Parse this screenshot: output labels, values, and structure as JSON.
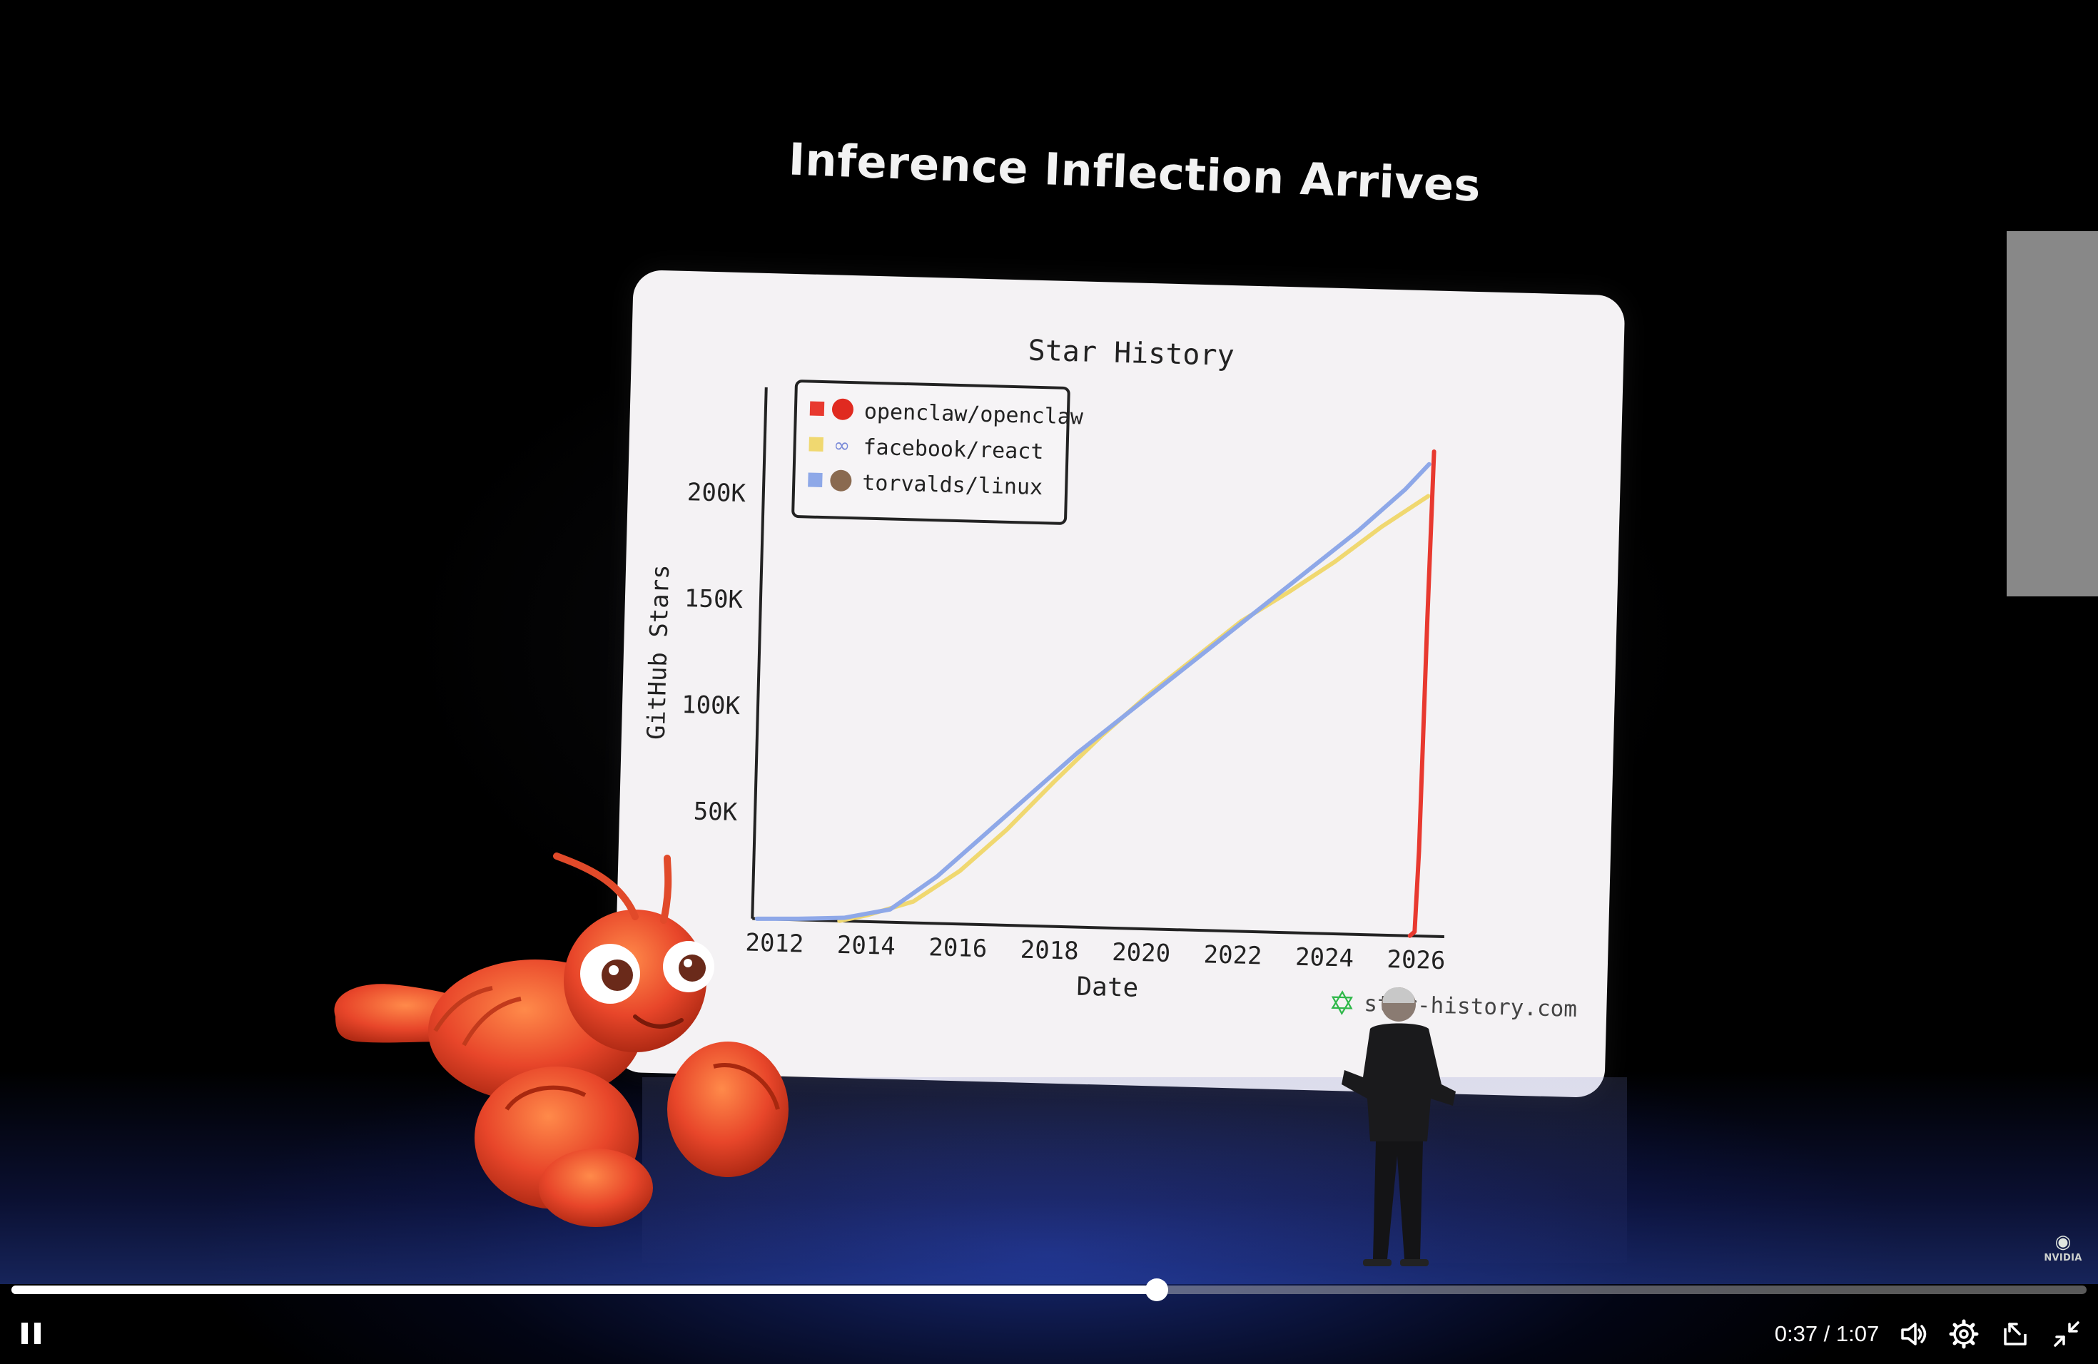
{
  "slide": {
    "title": "Inference Inflection Arrives"
  },
  "chart_data": {
    "type": "line",
    "title": "Star History",
    "xlabel": "Date",
    "ylabel": "GitHub Stars",
    "x_ticks": [
      "2012",
      "2014",
      "2016",
      "2018",
      "2020",
      "2022",
      "2024",
      "2026"
    ],
    "y_ticks": [
      "50K",
      "100K",
      "150K",
      "200K"
    ],
    "xlim": [
      2011.5,
      2026.6
    ],
    "ylim": [
      0,
      250000
    ],
    "legend_position": "top-left",
    "watermark": "star-history.com",
    "series": [
      {
        "name": "openclaw/openclaw",
        "color": "#e8392f",
        "x": [
          2025.85,
          2025.95,
          2026.0,
          2026.05,
          2026.1
        ],
        "y": [
          0,
          2000,
          40000,
          150000,
          228000
        ]
      },
      {
        "name": "facebook/react",
        "color": "#f0d870",
        "x": [
          2013.4,
          2014.0,
          2015.0,
          2016.0,
          2017.0,
          2018.0,
          2019.0,
          2020.0,
          2021.0,
          2022.0,
          2023.0,
          2024.0,
          2025.0,
          2026.0
        ],
        "y": [
          0,
          3000,
          10000,
          25000,
          45000,
          68000,
          90000,
          110000,
          128000,
          146000,
          160000,
          175000,
          192000,
          207000
        ]
      },
      {
        "name": "torvalds/linux",
        "color": "#8ea8e8",
        "x": [
          2011.6,
          2012.5,
          2013.5,
          2014.5,
          2015.5,
          2016.5,
          2017.5,
          2018.5,
          2019.5,
          2020.5,
          2021.5,
          2022.5,
          2023.5,
          2024.5,
          2025.5,
          2026.0
        ],
        "y": [
          0,
          500,
          1500,
          6000,
          22000,
          42000,
          62000,
          82000,
          100000,
          118000,
          136000,
          154000,
          172000,
          190000,
          210000,
          222000
        ]
      }
    ]
  },
  "player": {
    "current_time": "0:37",
    "duration": "1:07",
    "time_display": "0:37 / 1:07",
    "progress": 0.552,
    "pause_icon": "pause-icon",
    "volume_icon": "volume-icon",
    "settings_icon": "gear-icon",
    "miniplayer_icon": "miniplayer-icon",
    "fullscreen_exit_icon": "exit-fullscreen-icon"
  },
  "branding": {
    "logo_text": "NVIDIA"
  }
}
